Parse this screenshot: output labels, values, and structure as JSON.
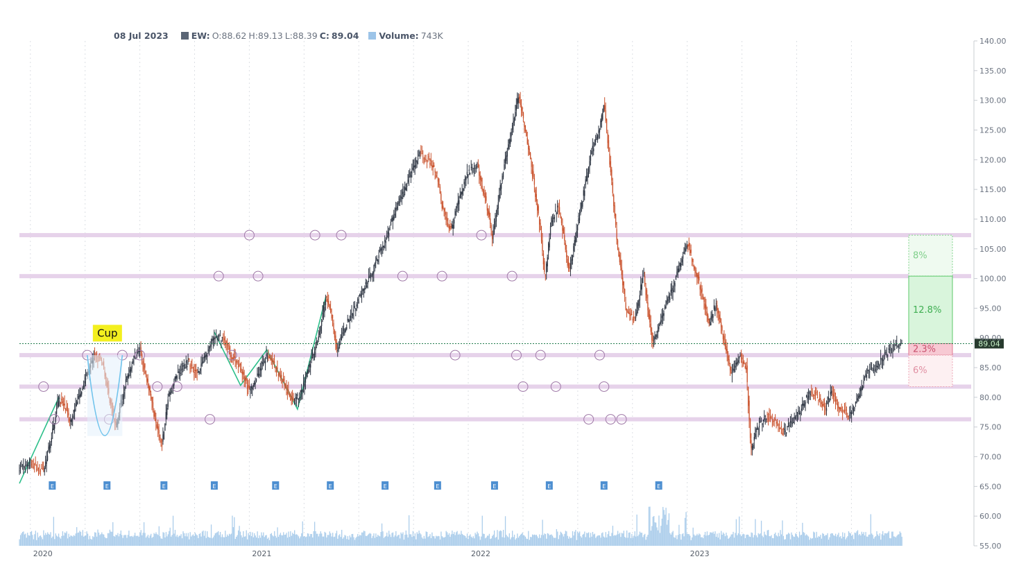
{
  "legend": {
    "date": "08 Jul 2023",
    "symbol_label": "EW:",
    "o": "O:88.62",
    "h": "H:89.13",
    "l": "L:88.39",
    "c_label": "C:",
    "c_value": "89.04",
    "volume_label": "Volume:",
    "volume_value": "743K"
  },
  "colors": {
    "up": "#2b3340",
    "down": "#c9502a",
    "volume": "#9cc4e8",
    "swatch_price": "#5a6575",
    "level": "#e6d2ea",
    "marker": "#a07aa8",
    "trend": "#2cbf8a",
    "cup": "#6fc3ec",
    "last_price_bg": "#273a2e",
    "earnings": "#4d8fd1"
  },
  "chart_data": {
    "type": "candlestick",
    "symbol": "EW",
    "ylim": [
      55,
      140
    ],
    "yticks": [
      "140.00",
      "135.00",
      "130.00",
      "125.00",
      "120.00",
      "115.00",
      "110.00",
      "105.00",
      "100.00",
      "95.00",
      "90.00",
      "85.00",
      "80.00",
      "75.00",
      "70.00",
      "65.00",
      "60.00",
      "55.00"
    ],
    "xticks": [
      "2020",
      "2021",
      "2022",
      "2023"
    ],
    "xtick_positions": [
      2020.0,
      2021.0,
      2022.0,
      2023.0
    ],
    "last_price": "89.04",
    "earnings_label": "E",
    "earnings_dates": [
      2020.1,
      2020.35,
      2020.61,
      2020.84,
      2021.12,
      2021.37,
      2021.62,
      2021.86,
      2022.12,
      2022.37,
      2022.62,
      2022.87
    ],
    "price_path": [
      [
        2019.95,
        68
      ],
      [
        2020.0,
        69
      ],
      [
        2020.06,
        67.5
      ],
      [
        2020.1,
        74
      ],
      [
        2020.13,
        80
      ],
      [
        2020.16,
        78
      ],
      [
        2020.18,
        76
      ],
      [
        2020.21,
        79
      ],
      [
        2020.25,
        83
      ],
      [
        2020.29,
        87
      ],
      [
        2020.33,
        86
      ],
      [
        2020.36,
        80
      ],
      [
        2020.39,
        75
      ],
      [
        2020.43,
        82
      ],
      [
        2020.47,
        86.5
      ],
      [
        2020.5,
        88
      ],
      [
        2020.54,
        82
      ],
      [
        2020.57,
        76
      ],
      [
        2020.6,
        72
      ],
      [
        2020.63,
        80
      ],
      [
        2020.67,
        84
      ],
      [
        2020.72,
        86
      ],
      [
        2020.76,
        84
      ],
      [
        2020.8,
        87
      ],
      [
        2020.84,
        90
      ],
      [
        2020.88,
        90
      ],
      [
        2020.92,
        87
      ],
      [
        2020.96,
        85
      ],
      [
        2021.0,
        81
      ],
      [
        2021.04,
        84
      ],
      [
        2021.08,
        87
      ],
      [
        2021.12,
        85
      ],
      [
        2021.16,
        82
      ],
      [
        2021.2,
        79
      ],
      [
        2021.24,
        81
      ],
      [
        2021.28,
        86
      ],
      [
        2021.32,
        91
      ],
      [
        2021.35,
        97
      ],
      [
        2021.38,
        93
      ],
      [
        2021.4,
        88
      ],
      [
        2021.44,
        92
      ],
      [
        2021.48,
        95
      ],
      [
        2021.52,
        98
      ],
      [
        2021.56,
        101
      ],
      [
        2021.6,
        105
      ],
      [
        2021.63,
        107
      ],
      [
        2021.66,
        111
      ],
      [
        2021.7,
        114
      ],
      [
        2021.74,
        118
      ],
      [
        2021.78,
        121
      ],
      [
        2021.82,
        120
      ],
      [
        2021.86,
        117
      ],
      [
        2021.88,
        112
      ],
      [
        2021.92,
        108
      ],
      [
        2021.96,
        114
      ],
      [
        2022.0,
        118
      ],
      [
        2022.04,
        119
      ],
      [
        2022.08,
        113
      ],
      [
        2022.11,
        107
      ],
      [
        2022.14,
        114
      ],
      [
        2022.18,
        122
      ],
      [
        2022.21,
        127
      ],
      [
        2022.23,
        131
      ],
      [
        2022.26,
        125
      ],
      [
        2022.3,
        116
      ],
      [
        2022.33,
        108
      ],
      [
        2022.35,
        100
      ],
      [
        2022.38,
        110
      ],
      [
        2022.41,
        112
      ],
      [
        2022.44,
        106
      ],
      [
        2022.46,
        101
      ],
      [
        2022.5,
        109
      ],
      [
        2022.53,
        115
      ],
      [
        2022.56,
        121
      ],
      [
        2022.6,
        125
      ],
      [
        2022.62,
        130
      ],
      [
        2022.65,
        118
      ],
      [
        2022.68,
        106
      ],
      [
        2022.72,
        95
      ],
      [
        2022.76,
        93
      ],
      [
        2022.8,
        101
      ],
      [
        2022.84,
        89
      ],
      [
        2022.87,
        92
      ],
      [
        2022.9,
        95
      ],
      [
        2022.94,
        99
      ],
      [
        2022.98,
        104
      ],
      [
        2023.0,
        106
      ],
      [
        2023.04,
        101
      ],
      [
        2023.07,
        97
      ],
      [
        2023.1,
        92
      ],
      [
        2023.13,
        96
      ],
      [
        2023.17,
        89
      ],
      [
        2023.2,
        84
      ],
      [
        2023.24,
        87
      ],
      [
        2023.27,
        85
      ],
      [
        2023.29,
        71
      ],
      [
        2023.32,
        75
      ],
      [
        2023.36,
        77
      ],
      [
        2023.4,
        76
      ],
      [
        2023.44,
        74
      ],
      [
        2023.48,
        76
      ],
      [
        2023.52,
        78
      ],
      [
        2023.56,
        81
      ],
      [
        2023.6,
        80
      ],
      [
        2023.63,
        78
      ],
      [
        2023.66,
        81
      ],
      [
        2023.7,
        78
      ],
      [
        2023.74,
        77
      ],
      [
        2023.78,
        80
      ],
      [
        2023.82,
        84
      ],
      [
        2023.86,
        85
      ],
      [
        2023.9,
        87
      ],
      [
        2023.93,
        88
      ],
      [
        2023.96,
        88.7
      ],
      [
        2023.98,
        89.04
      ]
    ],
    "levels": [
      107.3,
      100.4,
      87.1,
      81.8,
      76.3
    ],
    "level_markers": [
      [
        2020.06,
        81.8
      ],
      [
        2020.11,
        76.3
      ],
      [
        2020.26,
        87.1
      ],
      [
        2020.36,
        76.3
      ],
      [
        2020.42,
        87.1
      ],
      [
        2020.5,
        87.1
      ],
      [
        2020.58,
        81.8
      ],
      [
        2020.67,
        81.8
      ],
      [
        2020.82,
        76.3
      ],
      [
        2020.86,
        100.4
      ],
      [
        2020.92,
        87.1
      ],
      [
        2021.0,
        107.3
      ],
      [
        2021.04,
        100.4
      ],
      [
        2021.3,
        107.3
      ],
      [
        2021.42,
        107.3
      ],
      [
        2021.7,
        100.4
      ],
      [
        2021.88,
        100.4
      ],
      [
        2021.94,
        87.1
      ],
      [
        2022.06,
        107.3
      ],
      [
        2022.2,
        100.4
      ],
      [
        2022.22,
        87.1
      ],
      [
        2022.25,
        81.8
      ],
      [
        2022.33,
        87.1
      ],
      [
        2022.4,
        81.8
      ],
      [
        2022.55,
        76.3
      ],
      [
        2022.6,
        87.1
      ],
      [
        2022.62,
        81.8
      ],
      [
        2022.65,
        76.3
      ],
      [
        2022.7,
        76.3
      ]
    ],
    "range_boxes": [
      {
        "label": "8%",
        "from": 100.4,
        "to": 107.3,
        "style": "target-light"
      },
      {
        "label": "12.8%",
        "from": 89.04,
        "to": 100.4,
        "style": "target"
      },
      {
        "label": "2.3%",
        "from": 87.1,
        "to": 89.04,
        "style": "stop"
      },
      {
        "label": "6%",
        "from": 81.8,
        "to": 87.1,
        "style": "stop-light"
      }
    ],
    "annotations": [
      {
        "label": "Cup"
      }
    ],
    "volume_axis_ticks": [
      "60.00",
      "55.00"
    ]
  }
}
